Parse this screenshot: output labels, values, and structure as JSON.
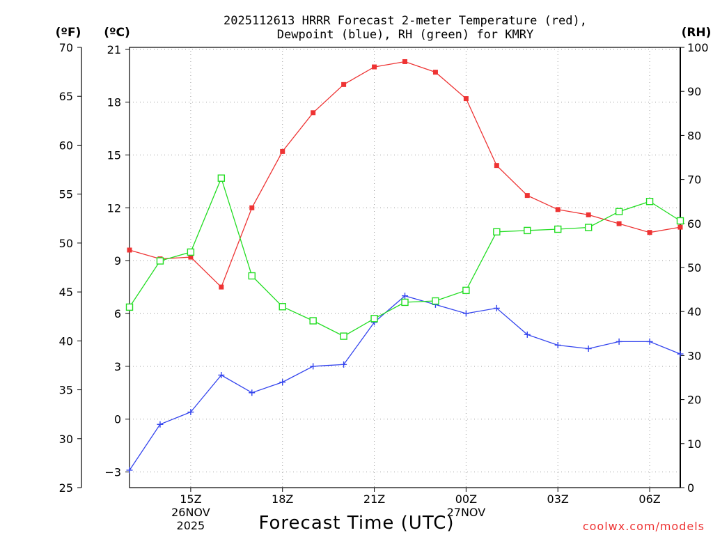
{
  "chart_data": {
    "type": "line",
    "title_line1": "2025112613 HRRR Forecast 2-meter Temperature (red),",
    "title_line2": "Dewpoint (blue), RH (green) for KMRY",
    "xlabel": "Forecast Time (UTC)",
    "credit": "coolwx.com/models",
    "left_axis_f": {
      "unit_label": "(ºF)",
      "ticks": [
        "25",
        "30",
        "35",
        "40",
        "45",
        "50",
        "55",
        "60",
        "65",
        "70"
      ],
      "ylim": [
        25,
        70
      ]
    },
    "left_axis_c": {
      "unit_label": "(ºC)",
      "ticks": [
        "−3",
        "0",
        "3",
        "6",
        "9",
        "12",
        "15",
        "18",
        "21"
      ],
      "ylim": [
        -3.89,
        21.11
      ]
    },
    "right_axis_rh": {
      "unit_label": "(RH)",
      "ticks": [
        "0",
        "10",
        "20",
        "30",
        "40",
        "50",
        "60",
        "70",
        "80",
        "90",
        "100"
      ],
      "ylim": [
        0,
        100
      ]
    },
    "x_hours": [
      13,
      14,
      15,
      16,
      17,
      18,
      19,
      20,
      21,
      22,
      23,
      24,
      25,
      26,
      27,
      28,
      29,
      30,
      31
    ],
    "x_ticks": [
      {
        "hour": 15,
        "label": "15Z",
        "sub1": "26NOV",
        "sub2": "2025"
      },
      {
        "hour": 18,
        "label": "18Z",
        "sub1": "",
        "sub2": ""
      },
      {
        "hour": 21,
        "label": "21Z",
        "sub1": "",
        "sub2": ""
      },
      {
        "hour": 24,
        "label": "00Z",
        "sub1": "27NOV",
        "sub2": ""
      },
      {
        "hour": 27,
        "label": "03Z",
        "sub1": "",
        "sub2": ""
      },
      {
        "hour": 30,
        "label": "06Z",
        "sub1": "",
        "sub2": ""
      }
    ],
    "grid": true,
    "series": [
      {
        "name": "Temperature",
        "unit": "C",
        "color": "#ee3333",
        "marker": "filled-square",
        "values": [
          9.6,
          9.1,
          9.2,
          7.5,
          12.0,
          15.2,
          17.4,
          19.0,
          20.0,
          20.3,
          19.7,
          18.2,
          14.4,
          12.7,
          11.9,
          11.6,
          11.1,
          10.6,
          10.9
        ]
      },
      {
        "name": "Dewpoint",
        "unit": "C",
        "color": "#3344ee",
        "marker": "plus",
        "values": [
          -2.9,
          -0.3,
          0.4,
          2.5,
          1.5,
          2.1,
          3.0,
          3.1,
          5.5,
          7.0,
          6.5,
          6.0,
          6.3,
          4.8,
          4.2,
          4.0,
          4.4,
          4.4,
          3.7
        ]
      },
      {
        "name": "RH",
        "unit": "%",
        "color": "#22dd22",
        "marker": "open-square",
        "values": [
          41,
          51.5,
          53.5,
          70.3,
          48.1,
          41.1,
          37.9,
          34.4,
          38.4,
          42.1,
          42.4,
          44.8,
          58.1,
          58.4,
          58.7,
          59.1,
          62.7,
          65.0,
          60.6
        ]
      }
    ]
  }
}
